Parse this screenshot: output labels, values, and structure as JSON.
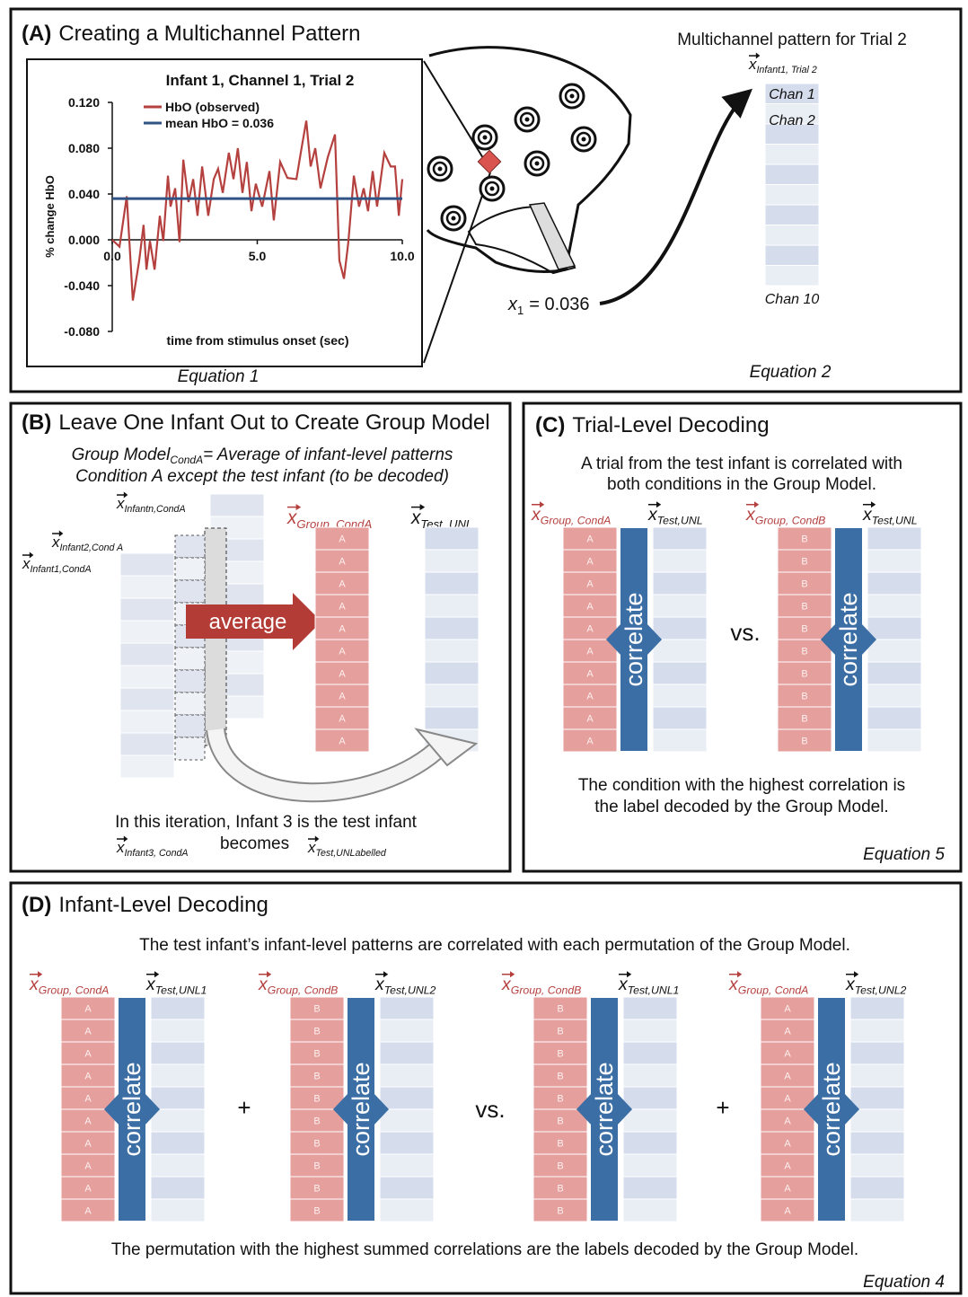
{
  "panel_a": {
    "label": "(A)",
    "title": "Creating a Multichannel Pattern",
    "equation": "Equation 1",
    "pattern_title": "Multichannel pattern for Trial 2",
    "pattern_vector": {
      "base": "x",
      "sub": "Infant1, Trial 2"
    },
    "channel_labels": [
      "Chan 1",
      "Chan 2",
      "Chan 10"
    ],
    "x1": {
      "base": "x",
      "sub": "1",
      "text": "= 0.036"
    },
    "pattern_equation": "Equation 2"
  },
  "chart_data": {
    "type": "line",
    "title": "Infant 1, Channel 1, Trial 2",
    "x_label": "time from stimulus onset (sec)",
    "y_label": "% change HbO",
    "xlim": [
      0,
      10
    ],
    "xticks": [
      {
        "value": 0,
        "label": "0.0"
      },
      {
        "value": 5,
        "label": "5.0"
      },
      {
        "value": 10,
        "label": "10.0"
      }
    ],
    "ylim": [
      -0.08,
      0.12
    ],
    "yticks": [
      {
        "value": 0.12,
        "label": "0.120"
      },
      {
        "value": 0.08,
        "label": "0.080"
      },
      {
        "value": 0.04,
        "label": "0.040"
      },
      {
        "value": 0,
        "label": "0.000"
      },
      {
        "value": -0.04,
        "label": "-0.040"
      },
      {
        "value": -0.08,
        "label": "-0.080"
      }
    ],
    "series": [
      {
        "name": "HbO (observed)",
        "color": "#b5413f",
        "x": [
          0,
          0.25,
          0.5,
          0.71,
          0.93,
          1.08,
          1.18,
          1.3,
          1.46,
          1.64,
          1.76,
          1.92,
          2.01,
          2.17,
          2.32,
          2.45,
          2.63,
          2.79,
          2.94,
          3.1,
          3.31,
          3.5,
          3.65,
          3.81,
          4.02,
          4.18,
          4.33,
          4.49,
          4.64,
          4.8,
          4.95,
          5.17,
          5.42,
          5.57,
          5.79,
          6.04,
          6.35,
          6.5,
          6.69,
          6.84,
          7.0,
          7.18,
          7.43,
          7.68,
          7.83,
          7.99,
          8.14,
          8.33,
          8.51,
          8.67,
          8.82,
          8.98,
          9.13,
          9.38,
          9.6,
          9.75,
          9.88,
          10.0
        ],
        "values": [
          0,
          -0.006,
          0.038,
          -0.053,
          -0.018,
          0.013,
          -0.026,
          -0.001,
          -0.026,
          0.021,
          -0.001,
          0.056,
          0.029,
          0.045,
          -0.002,
          0.07,
          0.033,
          0.053,
          0.021,
          0.064,
          0.021,
          0.053,
          0.062,
          0.041,
          0.076,
          0.053,
          0.08,
          0.041,
          0.068,
          0.025,
          0.049,
          0.029,
          0.06,
          0.017,
          0.068,
          0.054,
          0.053,
          0.076,
          0.104,
          0.064,
          0.08,
          0.045,
          0.072,
          0.092,
          -0.018,
          -0.034,
          -0.002,
          0.056,
          0.029,
          0.045,
          0.025,
          0.06,
          0.029,
          0.076,
          0.064,
          0.064,
          0.021,
          0.053
        ]
      },
      {
        "name": "mean HbO = 0.036",
        "color": "#2f5384",
        "x": [
          0,
          10
        ],
        "values": [
          0.036,
          0.036
        ]
      }
    ]
  },
  "panel_b": {
    "label": "(B)",
    "title": "Leave One Infant Out to Create Group Model",
    "model": {
      "name": "Group Model",
      "sub": "CondA",
      "rest": "= Average of infant-level patterns",
      "line2": "Condition A except the test infant (to be decoded)"
    },
    "infants": [
      {
        "base": "x",
        "sub": "Infantn,CondA"
      },
      {
        "base": "x",
        "sub": "Infant2,Cond A"
      },
      {
        "base": "x",
        "sub": "Infant1,CondA"
      }
    ],
    "arrow": "average",
    "group": {
      "base": "x",
      "sub": "Group, CondA"
    },
    "cells": [
      "A",
      "A",
      "A",
      "A",
      "A",
      "A",
      "A",
      "A",
      "A",
      "A"
    ],
    "test": {
      "base": "x",
      "sub": "Test, UNL"
    },
    "note": "In this iteration, Infant 3 is the test infant",
    "from": {
      "base": "x",
      "sub": "Infant3, CondA"
    },
    "becomes": "becomes",
    "to": {
      "base": "x",
      "sub": "Test,UNLabelled"
    }
  },
  "panel_c": {
    "label": "(C)",
    "title": "Trial-Level Decoding",
    "intro": [
      "A trial from the test infant is correlated with",
      "both conditions in the Group Model."
    ],
    "pairs": [
      {
        "group": {
          "base": "x",
          "sub": "Group, CondA"
        },
        "test": {
          "base": "x",
          "sub": "Test,UNL"
        },
        "cells": [
          "A",
          "A",
          "A",
          "A",
          "A",
          "A",
          "A",
          "A",
          "A",
          "A"
        ],
        "arrow": "correlate"
      },
      {
        "group": {
          "base": "x",
          "sub": "Group, CondB"
        },
        "test": {
          "base": "x",
          "sub": "Test,UNL"
        },
        "cells": [
          "B",
          "B",
          "B",
          "B",
          "B",
          "B",
          "B",
          "B",
          "B",
          "B"
        ],
        "arrow": "correlate"
      }
    ],
    "operators": [
      "vs."
    ],
    "conclusion": [
      "The condition with the highest correlation is",
      "the label decoded by the Group Model."
    ],
    "equation": "Equation 5"
  },
  "panel_d": {
    "label": "(D)",
    "title": "Infant-Level Decoding",
    "intro": "The test infant’s infant-level patterns are correlated with each permutation of the Group Model.",
    "pairs": [
      {
        "group": {
          "base": "x",
          "sub": "Group, CondA"
        },
        "test": {
          "base": "x",
          "sub": "Test,UNL1"
        },
        "cells": [
          "A",
          "A",
          "A",
          "A",
          "A",
          "A",
          "A",
          "A",
          "A",
          "A"
        ],
        "arrow": "correlate"
      },
      {
        "group": {
          "base": "x",
          "sub": "Group, CondB"
        },
        "test": {
          "base": "x",
          "sub": "Test,UNL2"
        },
        "cells": [
          "B",
          "B",
          "B",
          "B",
          "B",
          "B",
          "B",
          "B",
          "B",
          "B"
        ],
        "arrow": "correlate"
      },
      {
        "group": {
          "base": "x",
          "sub": "Group, CondB"
        },
        "test": {
          "base": "x",
          "sub": "Test,UNL1"
        },
        "cells": [
          "B",
          "B",
          "B",
          "B",
          "B",
          "B",
          "B",
          "B",
          "B",
          "B"
        ],
        "arrow": "correlate"
      },
      {
        "group": {
          "base": "x",
          "sub": "Group, CondA"
        },
        "test": {
          "base": "x",
          "sub": "Test,UNL2"
        },
        "cells": [
          "A",
          "A",
          "A",
          "A",
          "A",
          "A",
          "A",
          "A",
          "A",
          "A"
        ],
        "arrow": "correlate"
      }
    ],
    "operators": [
      "+",
      "vs.",
      "+"
    ],
    "conclusion": "The permutation with the highest summed correlations are the labels decoded by the Group Model.",
    "equation": "Equation 4"
  }
}
